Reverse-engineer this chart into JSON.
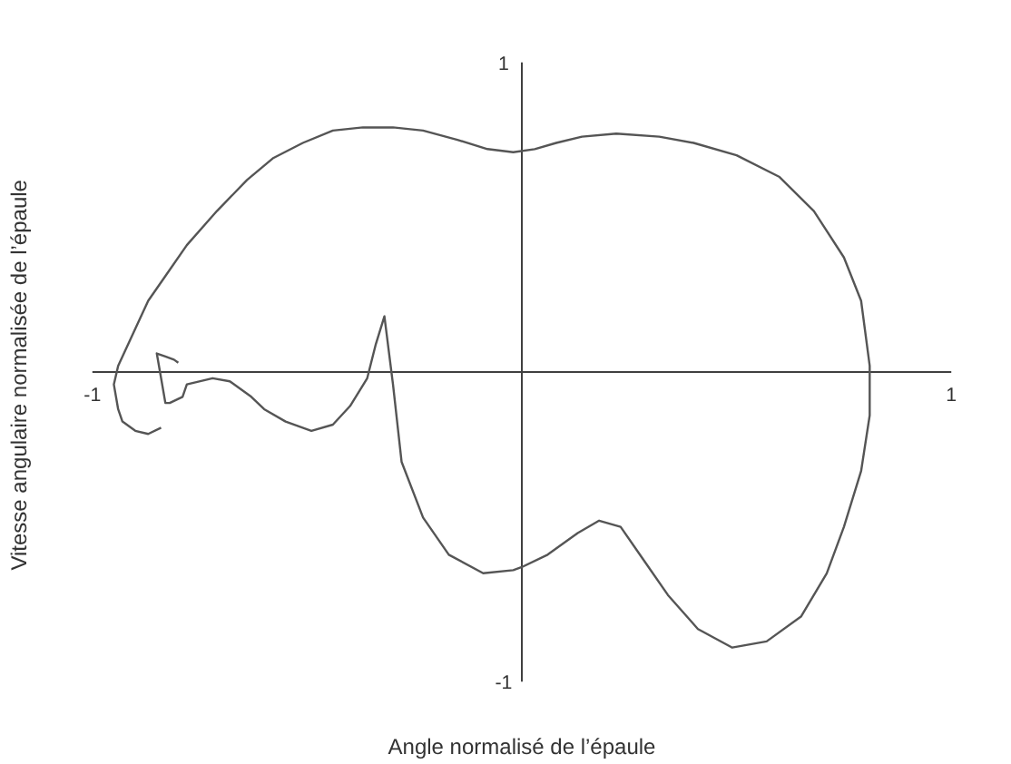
{
  "chart_data": {
    "type": "line",
    "xlabel": "Angle normalisé de l’épaule",
    "ylabel": "Vitesse  angulaire normalisée de l’épaule",
    "xlim": [
      -1,
      1
    ],
    "ylim": [
      -1,
      1
    ],
    "xticks": [
      -1,
      1
    ],
    "yticks": [
      -1,
      1
    ],
    "marker": "none",
    "line_style": "solid",
    "series": [
      {
        "color": "#555555",
        "x": [
          -0.84,
          -0.87,
          -0.9,
          -0.93,
          -0.94,
          -0.95,
          -0.94,
          -0.91,
          -0.87,
          -0.83,
          -0.78,
          -0.71,
          -0.64,
          -0.58,
          -0.51,
          -0.44,
          -0.37,
          -0.3,
          -0.23,
          -0.15,
          -0.08,
          -0.02,
          0.03,
          0.08,
          0.14,
          0.22,
          0.32,
          0.4,
          0.5,
          0.6,
          0.68,
          0.75,
          0.79,
          0.81,
          0.81,
          0.79,
          0.75,
          0.71,
          0.65,
          0.57,
          0.49,
          0.41,
          0.34,
          0.28,
          0.23,
          0.18,
          0.13,
          0.06,
          0.0,
          -0.02,
          -0.09,
          -0.17,
          -0.23,
          -0.28,
          -0.3,
          -0.32,
          -0.34,
          -0.36,
          -0.4,
          -0.44,
          -0.49,
          -0.55,
          -0.6,
          -0.63,
          -0.68,
          -0.72,
          -0.78,
          -0.79,
          -0.82,
          -0.83,
          -0.84,
          -0.85,
          -0.83,
          -0.81,
          -0.8
        ],
        "values": [
          -0.18,
          -0.2,
          -0.19,
          -0.16,
          -0.12,
          -0.04,
          0.02,
          0.11,
          0.23,
          0.31,
          0.41,
          0.52,
          0.62,
          0.69,
          0.74,
          0.78,
          0.79,
          0.79,
          0.78,
          0.75,
          0.72,
          0.71,
          0.72,
          0.74,
          0.76,
          0.77,
          0.76,
          0.74,
          0.7,
          0.63,
          0.52,
          0.37,
          0.23,
          0.02,
          -0.14,
          -0.32,
          -0.5,
          -0.65,
          -0.79,
          -0.87,
          -0.89,
          -0.83,
          -0.72,
          -0.6,
          -0.5,
          -0.48,
          -0.52,
          -0.59,
          -0.63,
          -0.64,
          -0.65,
          -0.59,
          -0.47,
          -0.29,
          -0.04,
          0.18,
          0.09,
          -0.02,
          -0.11,
          -0.17,
          -0.19,
          -0.16,
          -0.12,
          -0.08,
          -0.03,
          -0.02,
          -0.04,
          -0.08,
          -0.1,
          -0.1,
          -0.02,
          0.06,
          0.05,
          0.04,
          0.03
        ]
      }
    ]
  }
}
